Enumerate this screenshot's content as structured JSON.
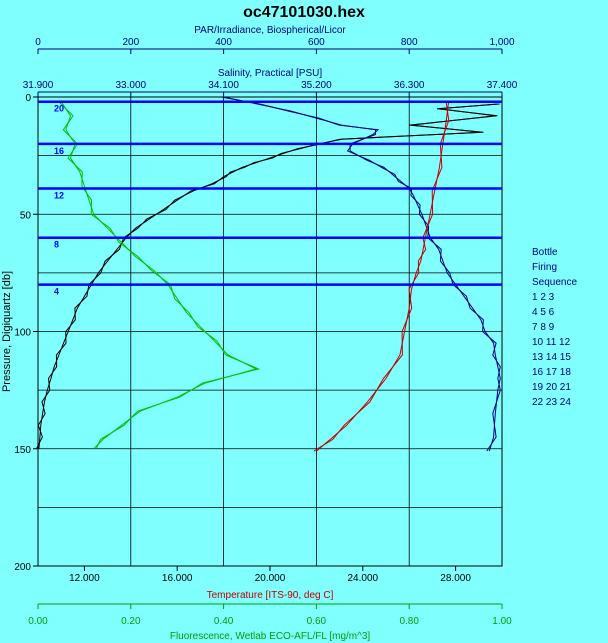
{
  "chart_data": {
    "type": "line",
    "title": "oc47101030.hex",
    "y_axis": {
      "label": "Pressure, Digiquartz [db]",
      "range": [
        0,
        200
      ],
      "ticks": [
        "0",
        "50",
        "100",
        "150",
        "200"
      ]
    },
    "axes": {
      "par": {
        "label": "PAR/Irradiance, Biospherical/Licor",
        "range": [
          0,
          1000
        ],
        "ticks": [
          "0",
          "200",
          "400",
          "600",
          "800",
          "1,000"
        ],
        "color": "#000080"
      },
      "salinity": {
        "label": "Salinity, Practical [PSU]",
        "range": [
          31.9,
          37.4
        ],
        "ticks": [
          "31.900",
          "33.000",
          "34.100",
          "35.200",
          "36.300",
          "37.400"
        ],
        "color": "#000080"
      },
      "temperature": {
        "label": "Temperature [ITS-90, deg C]",
        "range": [
          10,
          30
        ],
        "ticks": [
          "12.000",
          "16.000",
          "20.000",
          "24.000",
          "28.000"
        ],
        "tick_values": [
          12,
          16,
          20,
          24,
          28
        ],
        "color": "#c00000"
      },
      "fluorescence": {
        "label": "Fluorescence, Wetlab ECO-AFL/FL [mg/m^3]",
        "range": [
          0,
          1.0
        ],
        "ticks": [
          "0.00",
          "0.20",
          "0.40",
          "0.60",
          "0.80",
          "1.00"
        ],
        "color": "#00a000"
      }
    },
    "series": [
      {
        "axis": "par",
        "color": "#000000",
        "points": [
          [
            995,
            3
          ],
          [
            860,
            5
          ],
          [
            990,
            8
          ],
          [
            800,
            12
          ],
          [
            960,
            15
          ],
          [
            650,
            18
          ],
          [
            610,
            20
          ],
          [
            560,
            22
          ],
          [
            530,
            24
          ],
          [
            500,
            26
          ],
          [
            470,
            28
          ],
          [
            440,
            30
          ],
          [
            420,
            32
          ],
          [
            400,
            34
          ],
          [
            380,
            37
          ],
          [
            330,
            40
          ],
          [
            300,
            44
          ],
          [
            270,
            48
          ],
          [
            240,
            52
          ],
          [
            210,
            56
          ],
          [
            190,
            60
          ],
          [
            170,
            65
          ],
          [
            150,
            70
          ],
          [
            130,
            75
          ],
          [
            115,
            80
          ],
          [
            100,
            85
          ],
          [
            85,
            90
          ],
          [
            75,
            95
          ],
          [
            65,
            100
          ],
          [
            55,
            105
          ],
          [
            45,
            110
          ],
          [
            35,
            115
          ],
          [
            28,
            120
          ],
          [
            20,
            125
          ],
          [
            14,
            130
          ],
          [
            10,
            135
          ],
          [
            6,
            140
          ],
          [
            4,
            145
          ],
          [
            2,
            150
          ]
        ]
      },
      {
        "axis": "salinity",
        "color": "#000080",
        "points": [
          [
            34.1,
            0
          ],
          [
            34.5,
            3
          ],
          [
            34.9,
            6
          ],
          [
            35.2,
            9
          ],
          [
            35.5,
            12
          ],
          [
            35.9,
            14
          ],
          [
            35.9,
            16
          ],
          [
            35.6,
            20
          ],
          [
            35.6,
            23
          ],
          [
            35.8,
            27
          ],
          [
            36.0,
            30
          ],
          [
            36.1,
            33
          ],
          [
            36.2,
            36
          ],
          [
            36.3,
            39
          ],
          [
            36.35,
            42
          ],
          [
            36.4,
            46
          ],
          [
            36.45,
            50
          ],
          [
            36.5,
            55
          ],
          [
            36.55,
            60
          ],
          [
            36.65,
            65
          ],
          [
            36.7,
            70
          ],
          [
            36.75,
            75
          ],
          [
            36.85,
            80
          ],
          [
            36.95,
            85
          ],
          [
            37.05,
            90
          ],
          [
            37.15,
            95
          ],
          [
            37.2,
            100
          ],
          [
            37.3,
            105
          ],
          [
            37.32,
            110
          ],
          [
            37.35,
            115
          ],
          [
            37.38,
            120
          ],
          [
            37.35,
            125
          ],
          [
            37.32,
            135
          ],
          [
            37.3,
            145
          ],
          [
            37.25,
            151
          ]
        ]
      },
      {
        "axis": "temperature",
        "color": "#c00000",
        "points": [
          [
            27.7,
            2
          ],
          [
            27.6,
            10
          ],
          [
            27.45,
            20
          ],
          [
            27.3,
            30
          ],
          [
            27.1,
            40
          ],
          [
            26.9,
            50
          ],
          [
            26.7,
            60
          ],
          [
            26.6,
            65
          ],
          [
            26.5,
            70
          ],
          [
            26.3,
            75
          ],
          [
            26.1,
            82
          ],
          [
            26.0,
            90
          ],
          [
            25.8,
            100
          ],
          [
            25.6,
            110
          ],
          [
            25.0,
            120
          ],
          [
            24.2,
            130
          ],
          [
            23.3,
            140
          ],
          [
            22.6,
            146
          ],
          [
            22.0,
            151
          ]
        ]
      },
      {
        "axis": "fluorescence",
        "color": "#00c000",
        "points": [
          [
            0.05,
            2
          ],
          [
            0.07,
            8
          ],
          [
            0.06,
            14
          ],
          [
            0.08,
            20
          ],
          [
            0.07,
            26
          ],
          [
            0.09,
            32
          ],
          [
            0.1,
            38
          ],
          [
            0.11,
            44
          ],
          [
            0.12,
            50
          ],
          [
            0.15,
            56
          ],
          [
            0.18,
            62
          ],
          [
            0.21,
            68
          ],
          [
            0.25,
            74
          ],
          [
            0.28,
            80
          ],
          [
            0.3,
            86
          ],
          [
            0.32,
            92
          ],
          [
            0.35,
            98
          ],
          [
            0.38,
            104
          ],
          [
            0.41,
            110
          ],
          [
            0.47,
            116
          ],
          [
            0.36,
            122
          ],
          [
            0.3,
            128
          ],
          [
            0.22,
            134
          ],
          [
            0.18,
            140
          ],
          [
            0.14,
            146
          ],
          [
            0.12,
            150
          ]
        ]
      }
    ],
    "bottle_pressures": [
      2,
      20,
      39,
      60,
      80
    ],
    "bottle_labels": [
      "20",
      "16",
      "12",
      "8",
      "4"
    ],
    "grid": true,
    "legend": {
      "title_lines": [
        "Bottle",
        "Firing",
        "Sequence"
      ],
      "rows": [
        " 1  2  3",
        " 4  5  6",
        " 7  8  9",
        "10 11 12",
        "13 14 15",
        "16 17 18",
        "19 20 21",
        "22 23 24"
      ],
      "placement": "right"
    }
  }
}
